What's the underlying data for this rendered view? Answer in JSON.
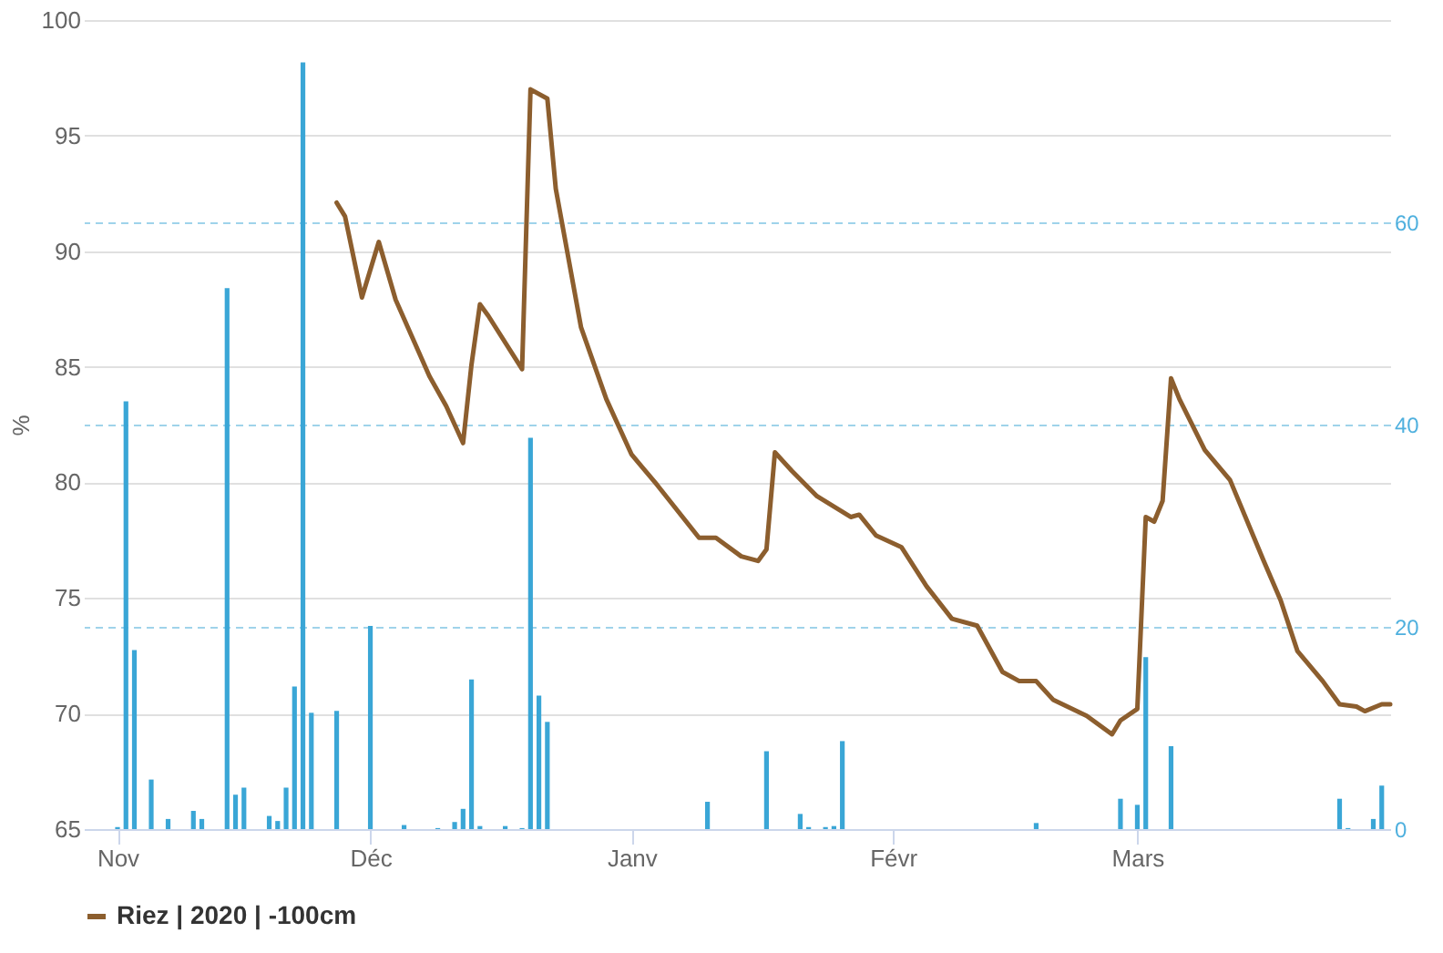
{
  "chart_data": {
    "type": "line",
    "ylabel": "%",
    "legend": "bottom",
    "grid": "y",
    "xlim": [
      "2019-10-28",
      "2020-03-31"
    ],
    "xticks": [
      {
        "value": "2019-11-01",
        "label": "Nov"
      },
      {
        "value": "2019-12-01",
        "label": "Déc"
      },
      {
        "value": "2020-01-01",
        "label": "Janv"
      },
      {
        "value": "2020-02-01",
        "label": "Févr"
      },
      {
        "value": "2020-03-01",
        "label": "Mars"
      }
    ],
    "ylim": [
      65,
      100
    ],
    "yticks": [
      65,
      70,
      75,
      80,
      85,
      90,
      95,
      100
    ],
    "y2lim": [
      0,
      80
    ],
    "y2ticks": [
      0,
      20,
      40,
      60
    ],
    "series": [
      {
        "type": "bar",
        "axis": "y2",
        "color": "#3aa6d6",
        "x": [
          "2019-11-01",
          "2019-11-02",
          "2019-11-03",
          "2019-11-05",
          "2019-11-07",
          "2019-11-10",
          "2019-11-11",
          "2019-11-14",
          "2019-11-15",
          "2019-11-16",
          "2019-11-19",
          "2019-11-20",
          "2019-11-21",
          "2019-11-22",
          "2019-11-23",
          "2019-11-24",
          "2019-11-27",
          "2019-12-01",
          "2019-12-05",
          "2019-12-09",
          "2019-12-11",
          "2019-12-12",
          "2019-12-13",
          "2019-12-14",
          "2019-12-17",
          "2019-12-19",
          "2019-12-20",
          "2019-12-21",
          "2019-12-22",
          "2020-01-10",
          "2020-01-17",
          "2020-01-21",
          "2020-01-22",
          "2020-01-24",
          "2020-01-25",
          "2020-01-26",
          "2020-02-18",
          "2020-02-28",
          "2020-03-01",
          "2020-03-02",
          "2020-03-05",
          "2020-03-25",
          "2020-03-26",
          "2020-03-29",
          "2020-03-30"
        ],
        "values": [
          0.2,
          42.3,
          17.7,
          4.9,
          1.0,
          1.8,
          1.0,
          53.5,
          3.4,
          4.1,
          1.3,
          0.8,
          4.1,
          14.1,
          75.8,
          11.5,
          11.7,
          20.1,
          0.4,
          0.1,
          0.7,
          2.0,
          14.8,
          0.3,
          0.3,
          0.1,
          38.7,
          13.2,
          10.6,
          2.7,
          7.7,
          1.5,
          0.2,
          0.2,
          0.3,
          8.7,
          0.6,
          3.0,
          2.4,
          17.0,
          8.2,
          3.0,
          0.1,
          1.0,
          4.3
        ]
      },
      {
        "name": "Riez | 2020 | -100cm",
        "color": "#8c5e2e",
        "x": [
          "2019-11-27",
          "2019-11-28",
          "2019-11-30",
          "2019-12-02",
          "2019-12-04",
          "2019-12-08",
          "2019-12-10",
          "2019-12-12",
          "2019-12-13",
          "2019-12-14",
          "2019-12-15",
          "2019-12-19",
          "2019-12-20",
          "2019-12-22",
          "2019-12-23",
          "2019-12-26",
          "2019-12-29",
          "2020-01-01",
          "2020-01-04",
          "2020-01-09",
          "2020-01-11",
          "2020-01-14",
          "2020-01-16",
          "2020-01-17",
          "2020-01-18",
          "2020-01-20",
          "2020-01-23",
          "2020-01-27",
          "2020-01-28",
          "2020-01-30",
          "2020-02-02",
          "2020-02-05",
          "2020-02-08",
          "2020-02-11",
          "2020-02-14",
          "2020-02-16",
          "2020-02-18",
          "2020-02-20",
          "2020-02-24",
          "2020-02-27",
          "2020-02-28",
          "2020-03-01",
          "2020-03-02",
          "2020-03-03",
          "2020-03-04",
          "2020-03-05",
          "2020-03-06",
          "2020-03-09",
          "2020-03-12",
          "2020-03-16",
          "2020-03-18",
          "2020-03-20",
          "2020-03-23",
          "2020-03-25",
          "2020-03-27",
          "2020-03-28",
          "2020-03-30",
          "2020-03-31"
        ],
        "values": [
          92.1,
          91.5,
          88.0,
          90.4,
          87.9,
          84.6,
          83.3,
          81.7,
          85.1,
          87.7,
          87.2,
          84.9,
          97.0,
          96.6,
          92.7,
          86.7,
          83.6,
          81.2,
          79.9,
          77.6,
          77.6,
          76.8,
          76.6,
          77.1,
          81.3,
          80.5,
          79.4,
          78.5,
          78.6,
          77.7,
          77.2,
          75.5,
          74.1,
          73.8,
          71.8,
          71.4,
          71.4,
          70.6,
          69.9,
          69.1,
          69.7,
          70.2,
          78.5,
          78.3,
          79.2,
          84.5,
          83.6,
          81.4,
          80.1,
          76.6,
          74.9,
          72.7,
          71.4,
          70.4,
          70.3,
          70.1,
          70.4,
          70.4
        ]
      }
    ]
  }
}
